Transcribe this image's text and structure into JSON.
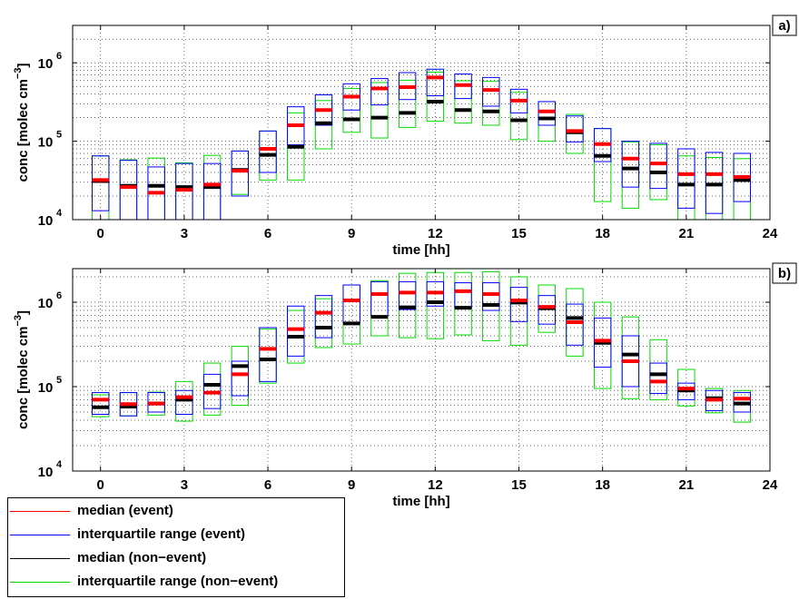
{
  "colors": {
    "event_median": "#ff0000",
    "event_iqr": "#0000ff",
    "nonevent_median": "#000000",
    "nonevent_iqr": "#00dd00"
  },
  "legend": {
    "placement": "bottom-left",
    "items": [
      {
        "key": "event_median",
        "label": "median (event)"
      },
      {
        "key": "event_iqr",
        "label": "interquartile range (event)"
      },
      {
        "key": "nonevent_median",
        "label": "median (non−event)"
      },
      {
        "key": "nonevent_iqr",
        "label": "interquartile range (non−event)"
      }
    ]
  },
  "chart_data": [
    {
      "type": "box",
      "panel_label": "a)",
      "xlabel": "time [hh]",
      "ylabel": "conc [molec cm",
      "ylabel_sup": "−3",
      "ylabel_close": "]",
      "xlim": [
        -1,
        24
      ],
      "xticks": [
        0,
        3,
        6,
        9,
        12,
        15,
        18,
        21,
        24
      ],
      "ylim": [
        10000,
        3000000
      ],
      "yscale": "log",
      "yticks": [
        10000,
        100000,
        1000000
      ],
      "ytick_labels": [
        {
          "base": "10",
          "exp": "4"
        },
        {
          "base": "10",
          "exp": "5"
        },
        {
          "base": "10",
          "exp": "6"
        }
      ],
      "grid": true,
      "hours": [
        0,
        1,
        2,
        3,
        4,
        5,
        6,
        7,
        8,
        9,
        10,
        11,
        12,
        13,
        14,
        15,
        16,
        17,
        18,
        19,
        20,
        21,
        22,
        23
      ],
      "event_median": [
        32000,
        26000,
        22000,
        24000,
        28000,
        42000,
        80000,
        160000,
        250000,
        370000,
        470000,
        490000,
        650000,
        520000,
        450000,
        330000,
        240000,
        135000,
        92000,
        60000,
        52000,
        38000,
        38000,
        35000
      ],
      "event_q1": [
        13000,
        10000,
        10000,
        10000,
        10000,
        20000,
        40000,
        90000,
        160000,
        250000,
        290000,
        340000,
        380000,
        350000,
        280000,
        230000,
        160000,
        98000,
        55000,
        26000,
        25000,
        14000,
        12000,
        17000
      ],
      "event_q3": [
        65000,
        57000,
        47000,
        52000,
        52000,
        75000,
        135000,
        275000,
        390000,
        540000,
        630000,
        750000,
        830000,
        720000,
        650000,
        460000,
        320000,
        210000,
        145000,
        100000,
        94000,
        80000,
        72000,
        70000
      ],
      "nonevent_median": [
        31000,
        27000,
        27000,
        26000,
        26000,
        43000,
        67000,
        85000,
        170000,
        190000,
        200000,
        230000,
        320000,
        250000,
        240000,
        185000,
        195000,
        130000,
        65000,
        45000,
        40000,
        28000,
        28000,
        32000
      ],
      "nonevent_q1": [
        10000,
        10000,
        10000,
        10000,
        10000,
        21000,
        32000,
        32000,
        80000,
        130000,
        110000,
        150000,
        180000,
        170000,
        160000,
        105000,
        100000,
        70000,
        17000,
        14000,
        18000,
        10000,
        10000,
        10000
      ],
      "nonevent_q3": [
        65000,
        58000,
        61000,
        53000,
        66000,
        75000,
        135000,
        230000,
        330000,
        470000,
        560000,
        600000,
        760000,
        590000,
        580000,
        420000,
        320000,
        220000,
        145000,
        98000,
        90000,
        65000,
        62000,
        60000
      ]
    },
    {
      "type": "box",
      "panel_label": "b)",
      "xlabel": "time [hh]",
      "ylabel": "conc [molec cm",
      "ylabel_sup": "−3",
      "ylabel_close": "]",
      "xlim": [
        -1,
        24
      ],
      "xticks": [
        0,
        3,
        6,
        9,
        12,
        15,
        18,
        21,
        24
      ],
      "ylim": [
        10000,
        2500000
      ],
      "yscale": "log",
      "yticks": [
        10000,
        100000,
        1000000
      ],
      "ytick_labels": [
        {
          "base": "10",
          "exp": "4"
        },
        {
          "base": "10",
          "exp": "5"
        },
        {
          "base": "10",
          "exp": "6"
        }
      ],
      "grid": true,
      "hours": [
        0,
        1,
        2,
        3,
        4,
        5,
        6,
        7,
        8,
        9,
        10,
        11,
        12,
        13,
        14,
        15,
        16,
        17,
        18,
        19,
        20,
        21,
        22,
        23
      ],
      "event_median": [
        70000,
        62000,
        63000,
        75000,
        85000,
        140000,
        280000,
        480000,
        750000,
        1050000,
        1250000,
        1300000,
        1300000,
        1350000,
        1250000,
        1050000,
        880000,
        580000,
        350000,
        200000,
        115000,
        95000,
        70000,
        72000
      ],
      "event_q1": [
        47000,
        45000,
        50000,
        47000,
        55000,
        78000,
        115000,
        230000,
        380000,
        570000,
        680000,
        820000,
        900000,
        850000,
        800000,
        590000,
        550000,
        310000,
        170000,
        100000,
        83000,
        70000,
        52000,
        50000
      ],
      "event_q3": [
        85000,
        85000,
        85000,
        90000,
        140000,
        200000,
        500000,
        900000,
        1200000,
        1600000,
        1750000,
        1750000,
        1750000,
        1700000,
        1700000,
        1500000,
        1200000,
        950000,
        650000,
        400000,
        190000,
        110000,
        90000,
        85000
      ],
      "nonevent_median": [
        57000,
        58000,
        63000,
        70000,
        105000,
        175000,
        210000,
        390000,
        500000,
        560000,
        670000,
        870000,
        1000000,
        860000,
        930000,
        990000,
        850000,
        650000,
        330000,
        240000,
        140000,
        90000,
        73000,
        63000
      ],
      "nonevent_q1": [
        44000,
        45000,
        46000,
        39000,
        46000,
        60000,
        110000,
        190000,
        290000,
        320000,
        400000,
        380000,
        370000,
        410000,
        350000,
        310000,
        440000,
        230000,
        95000,
        72000,
        70000,
        59000,
        49000,
        38000
      ],
      "nonevent_q3": [
        80000,
        85000,
        86000,
        115000,
        190000,
        300000,
        480000,
        800000,
        1100000,
        1600000,
        1800000,
        2200000,
        2250000,
        2250000,
        2300000,
        2000000,
        1600000,
        1450000,
        1000000,
        670000,
        360000,
        160000,
        95000,
        90000
      ]
    }
  ]
}
